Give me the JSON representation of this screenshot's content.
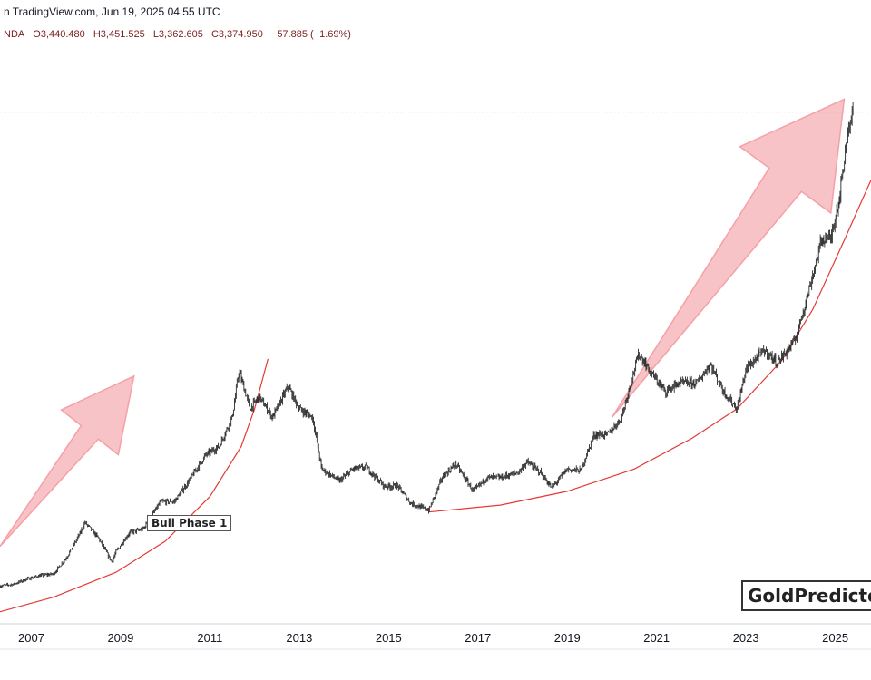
{
  "header": {
    "publisher": "n TradingView.com, Jun 19, 2025 04:55 UTC",
    "symbol_fragment": "NDA",
    "open": "O3,440.480",
    "high": "H3,451.525",
    "low": "L3,362.605",
    "close": "C3,374.950",
    "change": "−57.885 (−1.69%)"
  },
  "watermark": "GoldPredictor",
  "annotation_label": "Bull Phase 1",
  "colors": {
    "candle": "#2b2b2b",
    "curve": "#e53935",
    "arrow_fill": "#f8c3c6",
    "arrow_stroke": "#f5a0a6",
    "price_line": "#e57373",
    "axis_text": "#131722",
    "header_values": "#7a1e1e"
  },
  "chart_data": {
    "type": "line",
    "title": "",
    "xlabel": "",
    "ylabel": "",
    "x_ticks": [
      "2007",
      "2009",
      "2011",
      "2013",
      "2015",
      "2017",
      "2019",
      "2021",
      "2023",
      "2025"
    ],
    "xlim": [
      2006.3,
      2025.8
    ],
    "ylim": [
      400,
      3700
    ],
    "series": [
      {
        "x": [
          2006.3,
          2006.6,
          2006.9,
          2007.2,
          2007.5,
          2007.8,
          2008.1,
          2008.2,
          2008.5,
          2008.8,
          2008.9,
          2009.2,
          2009.5,
          2009.9,
          2010.2,
          2010.5,
          2010.9,
          2011.2,
          2011.5,
          2011.65,
          2011.9,
          2012.1,
          2012.4,
          2012.75,
          2013.0,
          2013.3,
          2013.5,
          2013.9,
          2014.2,
          2014.5,
          2014.9,
          2015.2,
          2015.5,
          2015.9,
          2016.2,
          2016.5,
          2016.9,
          2017.2,
          2017.5,
          2017.9,
          2018.1,
          2018.4,
          2018.65,
          2019.0,
          2019.3,
          2019.6,
          2019.9,
          2020.2,
          2020.6,
          2020.9,
          2021.2,
          2021.5,
          2021.9,
          2022.2,
          2022.5,
          2022.8,
          2023.0,
          2023.4,
          2023.7,
          2023.9,
          2024.1,
          2024.4,
          2024.7,
          2024.9,
          2025.1,
          2025.3,
          2025.4
        ],
        "y": [
          620,
          630,
          660,
          680,
          690,
          790,
          930,
          990,
          900,
          760,
          820,
          930,
          950,
          1110,
          1110,
          1220,
          1380,
          1430,
          1600,
          1870,
          1650,
          1720,
          1600,
          1780,
          1650,
          1600,
          1300,
          1230,
          1300,
          1310,
          1200,
          1200,
          1100,
          1060,
          1250,
          1330,
          1170,
          1250,
          1250,
          1280,
          1340,
          1280,
          1190,
          1300,
          1290,
          1500,
          1500,
          1590,
          1970,
          1850,
          1750,
          1800,
          1800,
          1910,
          1750,
          1650,
          1880,
          1990,
          1920,
          1980,
          2050,
          2330,
          2640,
          2640,
          2890,
          3300,
          3375
        ]
      }
    ],
    "support_curves": [
      {
        "x": [
          2006.3,
          2007.5,
          2008.9,
          2010.0,
          2011.0,
          2011.7,
          2012.0,
          2012.3
        ],
        "y": [
          470,
          555,
          700,
          880,
          1140,
          1430,
          1650,
          1940
        ]
      },
      {
        "x": [
          2015.9,
          2017.5,
          2019.0,
          2020.5,
          2021.8,
          2022.8,
          2023.8,
          2024.5,
          2025.2,
          2025.8
        ],
        "y": [
          1050,
          1090,
          1170,
          1300,
          1480,
          1650,
          1930,
          2230,
          2630,
          2980
        ]
      }
    ],
    "arrows": [
      {
        "tail": [
          2006.3,
          850
        ],
        "head": [
          2009.3,
          1840
        ]
      },
      {
        "tail": [
          2020.0,
          1600
        ],
        "head": [
          2025.2,
          3450
        ]
      }
    ],
    "last_price": 3374.95
  }
}
